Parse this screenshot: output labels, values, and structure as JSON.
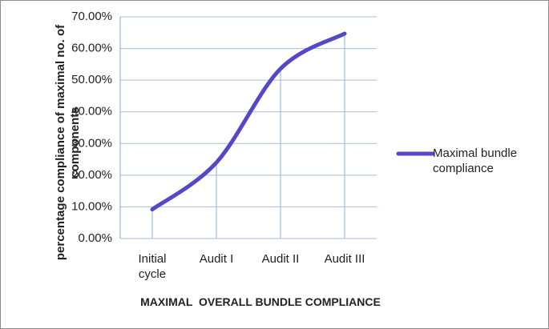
{
  "chart_data": {
    "type": "line",
    "x_axis_title": "MAXIMAL  OVERALL BUNDLE COMPLIANCE",
    "y_axis_title": "percentage compliance of maximal no. of components",
    "categories": [
      "Initial cycle",
      "Audit I",
      "Audit II",
      "Audit III"
    ],
    "series": [
      {
        "name": "Maximal bundle compliance",
        "color": "#5548c8",
        "values": [
          9.2,
          24,
          53.6,
          64.7
        ]
      }
    ],
    "ylim": [
      0,
      70
    ],
    "yticks": [
      {
        "value": 0,
        "label": "0.00%"
      },
      {
        "value": 10,
        "label": "10.00%"
      },
      {
        "value": 20,
        "label": "20.00%"
      },
      {
        "value": 30,
        "label": "30.00%"
      },
      {
        "value": 40,
        "label": "40.00%"
      },
      {
        "value": 50,
        "label": "50.00%"
      },
      {
        "value": 60,
        "label": "60.00%"
      },
      {
        "value": 70,
        "label": "70.00%"
      }
    ],
    "grid": true,
    "drop_lines": true,
    "legend": "right"
  }
}
